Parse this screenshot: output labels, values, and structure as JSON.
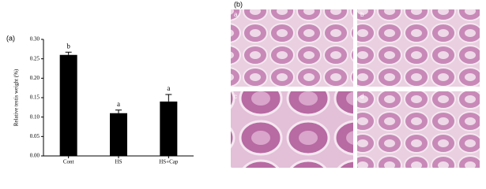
{
  "panel_labels": [
    "(a)",
    "(b)"
  ],
  "micrograph_labels": [
    "a",
    "b",
    "c",
    "d"
  ],
  "chart_data": {
    "type": "bar",
    "y_label": "Relative testis weight (%)",
    "categories": [
      "Cont",
      "HS",
      "HS+Cap"
    ],
    "values": [
      0.26,
      0.11,
      0.14
    ],
    "errors": [
      0.007,
      0.008,
      0.018
    ],
    "annotations": [
      "b",
      "a",
      "a"
    ],
    "color": "#000000",
    "ylim": [
      0,
      0.3
    ],
    "yticks": [
      {
        "value": 0,
        "label": "0.00"
      },
      {
        "value": 0.05,
        "label": "0.05"
      },
      {
        "value": 0.1,
        "label": "0.10"
      },
      {
        "value": 0.15,
        "label": "0.15"
      },
      {
        "value": 0.2,
        "label": "0.20"
      },
      {
        "value": 0.25,
        "label": "0.25"
      },
      {
        "value": 0.3,
        "label": "0.30"
      }
    ]
  }
}
